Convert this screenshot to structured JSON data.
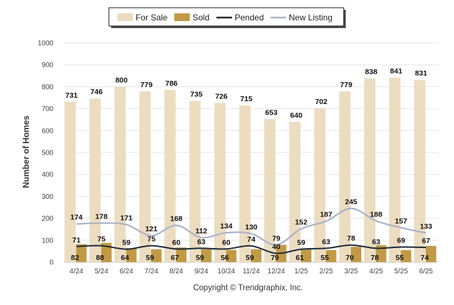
{
  "chart_data": {
    "type": "bar",
    "ylabel": "Number of Homes",
    "ylim": [
      0,
      1000
    ],
    "yticks": [
      0,
      100,
      200,
      300,
      400,
      500,
      600,
      700,
      800,
      900,
      1000
    ],
    "grid": true,
    "legend_position": "top-center",
    "categories": [
      "4/24",
      "5/24",
      "6/24",
      "7/24",
      "8/24",
      "9/24",
      "10/24",
      "11/24",
      "12/24",
      "1/25",
      "2/25",
      "3/25",
      "4/25",
      "5/25",
      "6/25"
    ],
    "series": [
      {
        "name": "For Sale",
        "kind": "bar",
        "color": "#ecdcc0",
        "values": [
          731,
          746,
          800,
          779,
          786,
          735,
          726,
          715,
          653,
          640,
          702,
          779,
          838,
          841,
          831
        ]
      },
      {
        "name": "Sold",
        "kind": "bar",
        "color": "#c29a46",
        "values": [
          82,
          88,
          64,
          59,
          67,
          59,
          56,
          59,
          79,
          61,
          55,
          70,
          78,
          55,
          74
        ]
      },
      {
        "name": "Pended",
        "kind": "line",
        "color": "#1b2a3a",
        "values": [
          71,
          75,
          59,
          75,
          60,
          63,
          60,
          74,
          40,
          59,
          63,
          78,
          63,
          69,
          67
        ]
      },
      {
        "name": "New Listing",
        "kind": "line",
        "color": "#a9b3c9",
        "values": [
          174,
          178,
          171,
          121,
          168,
          112,
          134,
          130,
          79,
          152,
          187,
          245,
          188,
          157,
          133
        ]
      }
    ]
  },
  "copyright": "Copyright © Trendgraphix, Inc."
}
